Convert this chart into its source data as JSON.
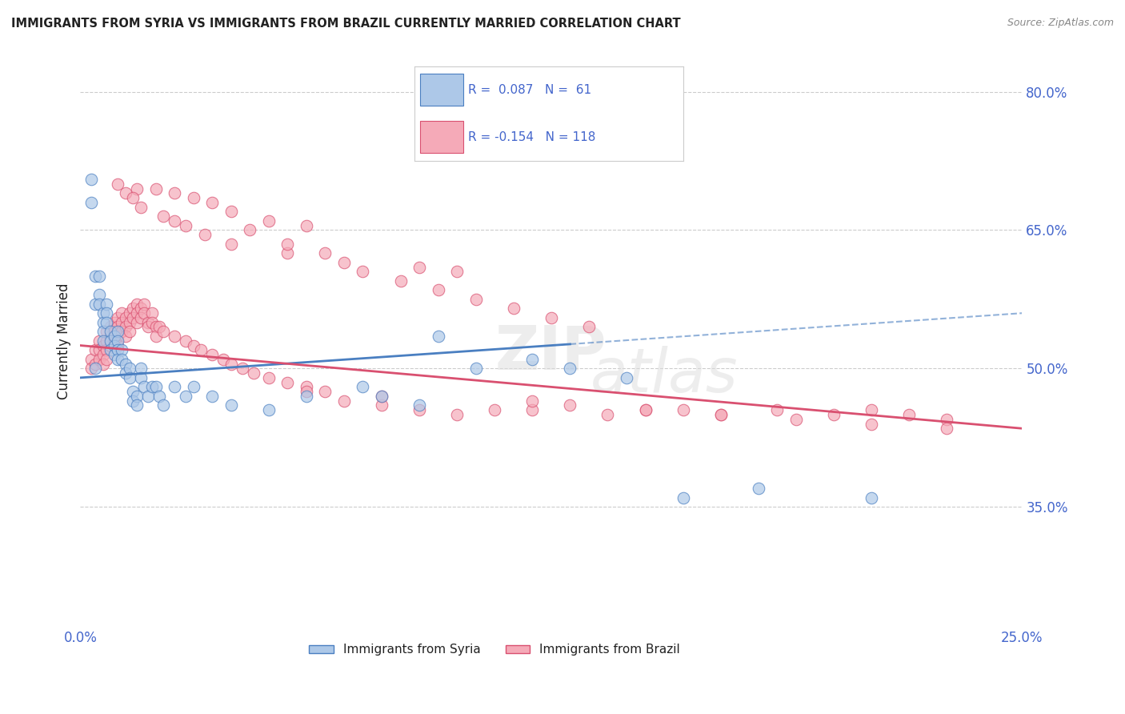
{
  "title": "IMMIGRANTS FROM SYRIA VS IMMIGRANTS FROM BRAZIL CURRENTLY MARRIED CORRELATION CHART",
  "source": "Source: ZipAtlas.com",
  "ylabel": "Currently Married",
  "xlim": [
    0.0,
    0.25
  ],
  "ylim": [
    0.22,
    0.84
  ],
  "yticks": [
    0.35,
    0.5,
    0.65,
    0.8
  ],
  "ytick_labels": [
    "35.0%",
    "50.0%",
    "65.0%",
    "80.0%"
  ],
  "xticks": [
    0.0,
    0.05,
    0.1,
    0.15,
    0.2,
    0.25
  ],
  "xtick_labels": [
    "0.0%",
    "",
    "",
    "",
    "",
    "25.0%"
  ],
  "syria_R": 0.087,
  "syria_N": 61,
  "brazil_R": -0.154,
  "brazil_N": 118,
  "syria_color": "#adc8e8",
  "brazil_color": "#f5aab8",
  "syria_line_color": "#4a7fc1",
  "brazil_line_color": "#d95070",
  "background_color": "#ffffff",
  "grid_color": "#cccccc",
  "title_color": "#222222",
  "axis_color": "#4466cc",
  "legend_label_syria": "Immigrants from Syria",
  "legend_label_brazil": "Immigrants from Brazil",
  "syria_trend_x0": 0.0,
  "syria_trend_y0": 0.49,
  "syria_trend_x1": 0.25,
  "syria_trend_y1": 0.56,
  "brazil_trend_x0": 0.0,
  "brazil_trend_y0": 0.525,
  "brazil_trend_x1": 0.25,
  "brazil_trend_y1": 0.435,
  "syria_x": [
    0.003,
    0.003,
    0.004,
    0.004,
    0.004,
    0.005,
    0.005,
    0.005,
    0.006,
    0.006,
    0.006,
    0.006,
    0.007,
    0.007,
    0.007,
    0.008,
    0.008,
    0.008,
    0.009,
    0.009,
    0.009,
    0.01,
    0.01,
    0.01,
    0.01,
    0.011,
    0.011,
    0.012,
    0.012,
    0.013,
    0.013,
    0.014,
    0.014,
    0.015,
    0.015,
    0.016,
    0.016,
    0.017,
    0.018,
    0.019,
    0.02,
    0.021,
    0.022,
    0.025,
    0.028,
    0.03,
    0.035,
    0.04,
    0.05,
    0.06,
    0.075,
    0.08,
    0.09,
    0.095,
    0.105,
    0.12,
    0.13,
    0.145,
    0.16,
    0.18,
    0.21
  ],
  "syria_y": [
    0.705,
    0.68,
    0.6,
    0.57,
    0.5,
    0.6,
    0.58,
    0.57,
    0.56,
    0.55,
    0.54,
    0.53,
    0.57,
    0.56,
    0.55,
    0.54,
    0.53,
    0.52,
    0.535,
    0.525,
    0.515,
    0.54,
    0.53,
    0.52,
    0.51,
    0.52,
    0.51,
    0.505,
    0.495,
    0.5,
    0.49,
    0.475,
    0.465,
    0.47,
    0.46,
    0.5,
    0.49,
    0.48,
    0.47,
    0.48,
    0.48,
    0.47,
    0.46,
    0.48,
    0.47,
    0.48,
    0.47,
    0.46,
    0.455,
    0.47,
    0.48,
    0.47,
    0.46,
    0.535,
    0.5,
    0.51,
    0.5,
    0.49,
    0.36,
    0.37,
    0.36
  ],
  "brazil_x": [
    0.003,
    0.003,
    0.004,
    0.004,
    0.005,
    0.005,
    0.005,
    0.006,
    0.006,
    0.006,
    0.007,
    0.007,
    0.007,
    0.007,
    0.008,
    0.008,
    0.008,
    0.009,
    0.009,
    0.009,
    0.01,
    0.01,
    0.01,
    0.01,
    0.011,
    0.011,
    0.011,
    0.012,
    0.012,
    0.012,
    0.013,
    0.013,
    0.013,
    0.014,
    0.014,
    0.015,
    0.015,
    0.015,
    0.016,
    0.016,
    0.017,
    0.017,
    0.018,
    0.018,
    0.019,
    0.019,
    0.02,
    0.02,
    0.021,
    0.022,
    0.025,
    0.028,
    0.03,
    0.032,
    0.035,
    0.038,
    0.04,
    0.043,
    0.046,
    0.05,
    0.055,
    0.06,
    0.065,
    0.07,
    0.08,
    0.09,
    0.1,
    0.11,
    0.12,
    0.14,
    0.15,
    0.16,
    0.17,
    0.185,
    0.2,
    0.21,
    0.22,
    0.23,
    0.015,
    0.02,
    0.025,
    0.03,
    0.035,
    0.04,
    0.05,
    0.06,
    0.01,
    0.012,
    0.014,
    0.016,
    0.022,
    0.028,
    0.033,
    0.04,
    0.055,
    0.07,
    0.09,
    0.1,
    0.06,
    0.08,
    0.12,
    0.13,
    0.15,
    0.17,
    0.19,
    0.21,
    0.23,
    0.025,
    0.045,
    0.055,
    0.065,
    0.075,
    0.085,
    0.095,
    0.105,
    0.115,
    0.125,
    0.135
  ],
  "brazil_y": [
    0.51,
    0.5,
    0.52,
    0.505,
    0.53,
    0.52,
    0.51,
    0.525,
    0.515,
    0.505,
    0.54,
    0.53,
    0.52,
    0.51,
    0.545,
    0.535,
    0.525,
    0.55,
    0.54,
    0.53,
    0.555,
    0.545,
    0.535,
    0.525,
    0.56,
    0.55,
    0.54,
    0.555,
    0.545,
    0.535,
    0.56,
    0.55,
    0.54,
    0.565,
    0.555,
    0.57,
    0.56,
    0.55,
    0.565,
    0.555,
    0.57,
    0.56,
    0.55,
    0.545,
    0.56,
    0.55,
    0.545,
    0.535,
    0.545,
    0.54,
    0.535,
    0.53,
    0.525,
    0.52,
    0.515,
    0.51,
    0.505,
    0.5,
    0.495,
    0.49,
    0.485,
    0.48,
    0.475,
    0.465,
    0.46,
    0.455,
    0.45,
    0.455,
    0.455,
    0.45,
    0.455,
    0.455,
    0.45,
    0.455,
    0.45,
    0.455,
    0.45,
    0.445,
    0.695,
    0.695,
    0.69,
    0.685,
    0.68,
    0.67,
    0.66,
    0.655,
    0.7,
    0.69,
    0.685,
    0.675,
    0.665,
    0.655,
    0.645,
    0.635,
    0.625,
    0.615,
    0.61,
    0.605,
    0.475,
    0.47,
    0.465,
    0.46,
    0.455,
    0.45,
    0.445,
    0.44,
    0.435,
    0.66,
    0.65,
    0.635,
    0.625,
    0.605,
    0.595,
    0.585,
    0.575,
    0.565,
    0.555,
    0.545
  ]
}
